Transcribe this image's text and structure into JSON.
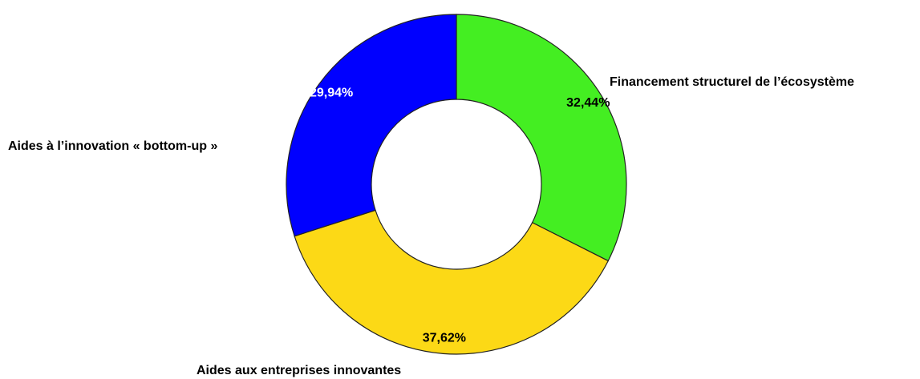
{
  "chart_data": {
    "type": "donut",
    "categories": [
      "Financement structurel de l’écosystème",
      "Aides aux entreprises innovantes",
      "Aides à l’innovation « bottom-up »"
    ],
    "values": [
      32.44,
      37.62,
      29.94
    ],
    "value_labels": [
      "32,44%",
      "37,62%",
      "29,94%"
    ],
    "colors": [
      "#44ee22",
      "#fcd916",
      "#0000ff"
    ]
  }
}
